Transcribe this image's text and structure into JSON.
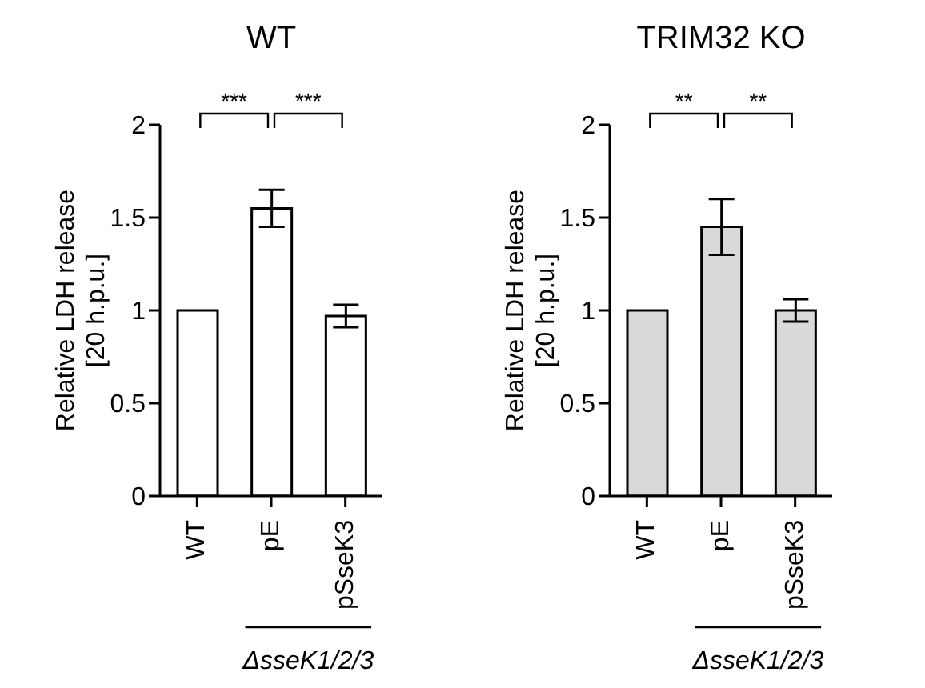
{
  "chart_data": [
    {
      "type": "bar",
      "title": "WT",
      "ylabel": "Relative LDH release\n[20 h.p.u.]",
      "categories": [
        "WT",
        "pE",
        "pSseK3"
      ],
      "values": [
        1,
        1.55,
        0.97
      ],
      "errors": [
        null,
        0.1,
        0.06
      ],
      "color": "#ffffff",
      "ylim": [
        0,
        2
      ],
      "yticks": [
        0,
        0.5,
        1,
        1.5,
        2
      ],
      "annotations": [
        "***",
        "***",
        "ΔsseK1/2/3"
      ]
    },
    {
      "type": "bar",
      "title": "TRIM32 KO",
      "ylabel": "Relative LDH release\n[20 h.p.u.]",
      "categories": [
        "WT",
        "pE",
        "pSseK3"
      ],
      "values": [
        1,
        1.45,
        1.0
      ],
      "errors": [
        null,
        0.15,
        0.06
      ],
      "color": "#d9d9d9",
      "ylim": [
        0,
        2
      ],
      "yticks": [
        0,
        0.5,
        1,
        1.5,
        2
      ],
      "annotations": [
        "**",
        "**",
        "ΔsseK1/2/3"
      ]
    }
  ]
}
